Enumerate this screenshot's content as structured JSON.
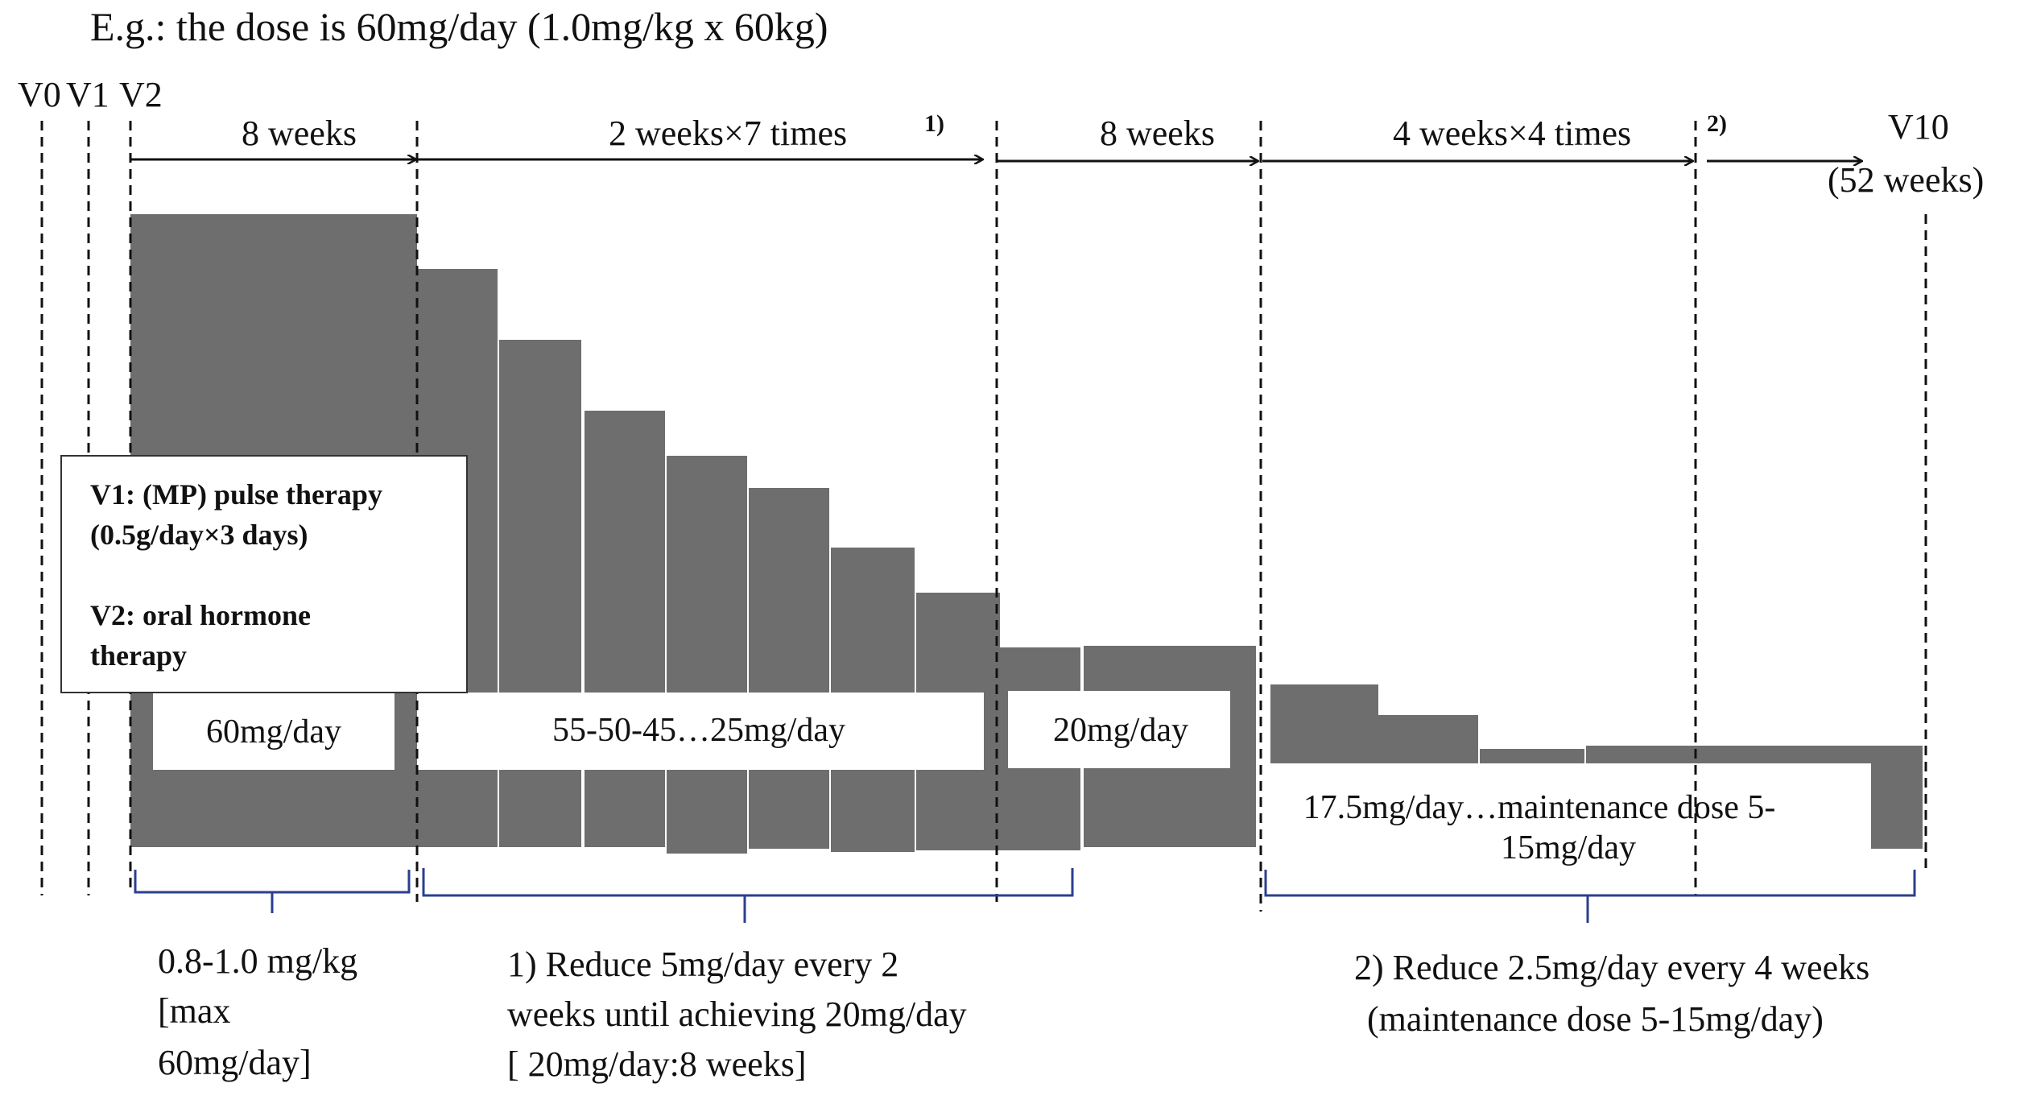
{
  "header": {
    "example": "E.g.: the dose is 60mg/day  (1.0mg/kg x 60kg)"
  },
  "visits": {
    "v0": "V0",
    "v1": "V1",
    "v2": "V2",
    "v10": "V10",
    "v10_weeks": "(52 weeks)"
  },
  "periods": {
    "p1": "8 weeks",
    "p2": "2 weeks×7 times",
    "p2_note": "1)",
    "p3": "8 weeks",
    "p4": "4 weeks×4 times",
    "p4_note": "2)"
  },
  "dose_labels": {
    "initial": "60mg/day",
    "taper": "55-50-45…25mg/day",
    "hold": "20mg/day",
    "maintenance_line1": "17.5mg/day…maintenance dose 5-",
    "maintenance_line2": "15mg/day"
  },
  "info_box": {
    "line1": "V1: (MP) pulse therapy",
    "line2": "(0.5g/day×3 days)",
    "line3": "V2: oral hormone",
    "line4": "therapy"
  },
  "notes": {
    "phase1": [
      "0.8-1.0 mg/kg",
      "[max",
      "60mg/day]"
    ],
    "phase2": [
      "1) Reduce 5mg/day every 2",
      "weeks until achieving 20mg/day",
      "[ 20mg/day:8 weeks]"
    ],
    "phase3": [
      "2) Reduce 2.5mg/day every 4 weeks",
      "(maintenance dose 5-15mg/day)"
    ]
  },
  "colors": {
    "bar": "#6e6e6e",
    "brace": "#2a3f8f",
    "line": "#111111"
  }
}
